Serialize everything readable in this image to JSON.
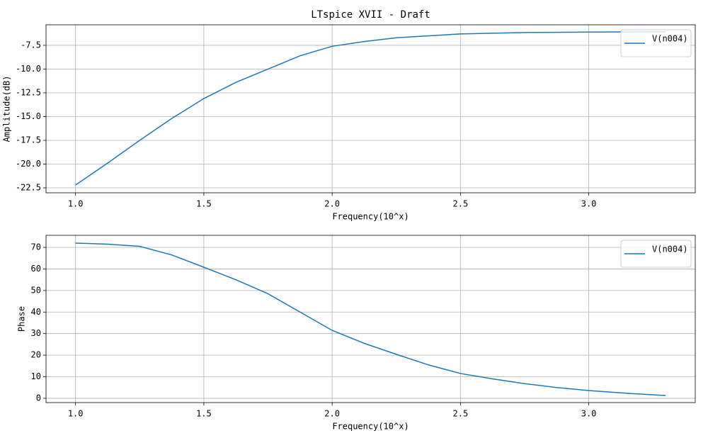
{
  "chart_data": [
    {
      "type": "line",
      "title": "LTspice XVII - Draft",
      "x_label": "Frequency(10^x)",
      "y_label": "Amplitude(dB)",
      "x": [
        1.0,
        1.125,
        1.25,
        1.375,
        1.5,
        1.625,
        1.75,
        1.875,
        2.0,
        2.125,
        2.25,
        2.5,
        2.75,
        3.0,
        3.3
      ],
      "series": [
        {
          "name": "V(n004)",
          "color": "#1f77b4",
          "values": [
            -22.2,
            -19.9,
            -17.5,
            -15.2,
            -13.1,
            -11.4,
            -10.0,
            -8.6,
            -7.6,
            -7.1,
            -6.7,
            -6.3,
            -6.15,
            -6.1,
            -6.08
          ]
        }
      ],
      "xlim": [
        0.885,
        3.415
      ],
      "ylim": [
        -23.02,
        -5.34
      ],
      "xticks": [
        {
          "value": 1,
          "label": "1.0"
        },
        1.5,
        {
          "value": 2,
          "label": "2.0"
        },
        2.5,
        {
          "value": 3,
          "label": "3.0"
        }
      ],
      "yticks": [
        -7.5,
        {
          "value": -10,
          "label": "-10.0"
        },
        -12.5,
        {
          "value": -15,
          "label": "-15.0"
        },
        -17.5,
        {
          "value": -20,
          "label": "-20.0"
        },
        -22.5
      ],
      "grid": true,
      "legend": "upper right"
    },
    {
      "type": "line",
      "x_label": "Frequency(10^x)",
      "y_label": "Phase",
      "x": [
        1.0,
        1.125,
        1.25,
        1.375,
        1.5,
        1.625,
        1.75,
        1.875,
        2.0,
        2.125,
        2.25,
        2.375,
        2.5,
        2.625,
        2.75,
        2.875,
        3.0,
        3.15,
        3.3
      ],
      "series": [
        {
          "name": "V(n004)",
          "color": "#1f77b4",
          "values": [
            72.0,
            71.5,
            70.5,
            66.5,
            60.8,
            55.0,
            48.5,
            40.0,
            31.5,
            25.5,
            20.4,
            15.5,
            11.5,
            9.0,
            6.8,
            5.0,
            3.6,
            2.3,
            1.3
          ]
        }
      ],
      "xlim": [
        0.885,
        3.415
      ],
      "ylim": [
        -2.0,
        75.6
      ],
      "xticks": [
        {
          "value": 1,
          "label": "1.0"
        },
        1.5,
        {
          "value": 2,
          "label": "2.0"
        },
        2.5,
        {
          "value": 3,
          "label": "3.0"
        }
      ],
      "yticks": [
        0,
        10,
        20,
        30,
        40,
        50,
        60,
        70
      ],
      "grid": true,
      "legend": "upper right"
    }
  ]
}
